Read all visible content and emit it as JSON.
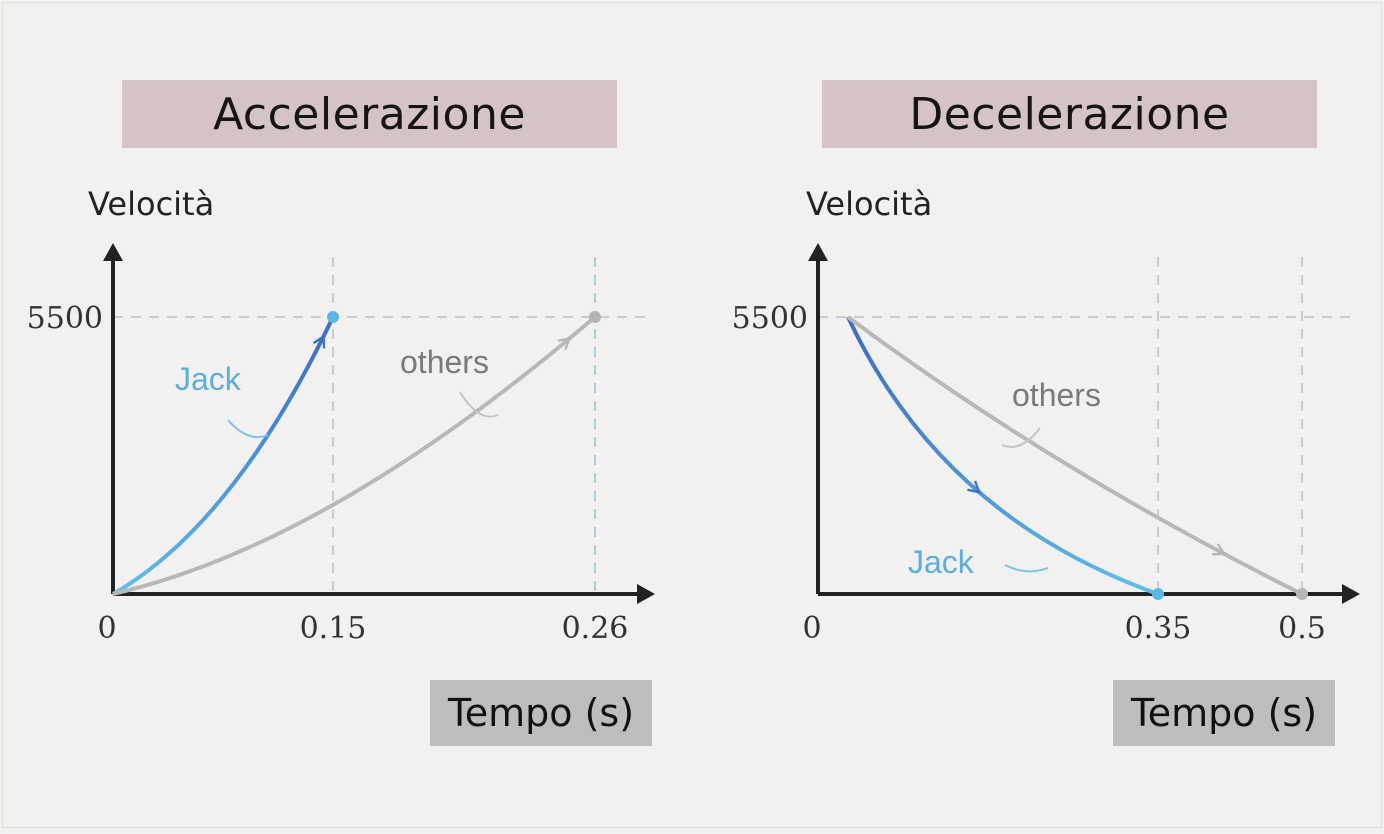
{
  "chart_data": [
    {
      "type": "line",
      "title": "Accelerazione",
      "ylabel": "Velocità",
      "xlabel": "Tempo (s)",
      "ylim": [
        0,
        5500
      ],
      "xlim": [
        0,
        0.26
      ],
      "y_ticks": [
        "5500"
      ],
      "x_ticks": [
        "0",
        "0.15",
        "0.26"
      ],
      "series": [
        {
          "name": "Jack",
          "color": "#5aaee0",
          "x": [
            0,
            0.15
          ],
          "y": [
            0,
            5500
          ]
        },
        {
          "name": "others",
          "color": "#b8b8b8",
          "x": [
            0,
            0.26
          ],
          "y": [
            0,
            5500
          ]
        }
      ]
    },
    {
      "type": "line",
      "title": "Decelerazione",
      "ylabel": "Velocità",
      "xlabel": "Tempo (s)",
      "ylim": [
        0,
        5500
      ],
      "xlim": [
        0,
        0.5
      ],
      "y_ticks": [
        "5500"
      ],
      "x_ticks": [
        "0",
        "0.35",
        "0.5"
      ],
      "series": [
        {
          "name": "Jack",
          "color": "#5aaee0",
          "x": [
            0,
            0.35
          ],
          "y": [
            5500,
            0
          ]
        },
        {
          "name": "others",
          "color": "#b8b8b8",
          "x": [
            0,
            0.5
          ],
          "y": [
            5500,
            0
          ]
        }
      ]
    }
  ]
}
